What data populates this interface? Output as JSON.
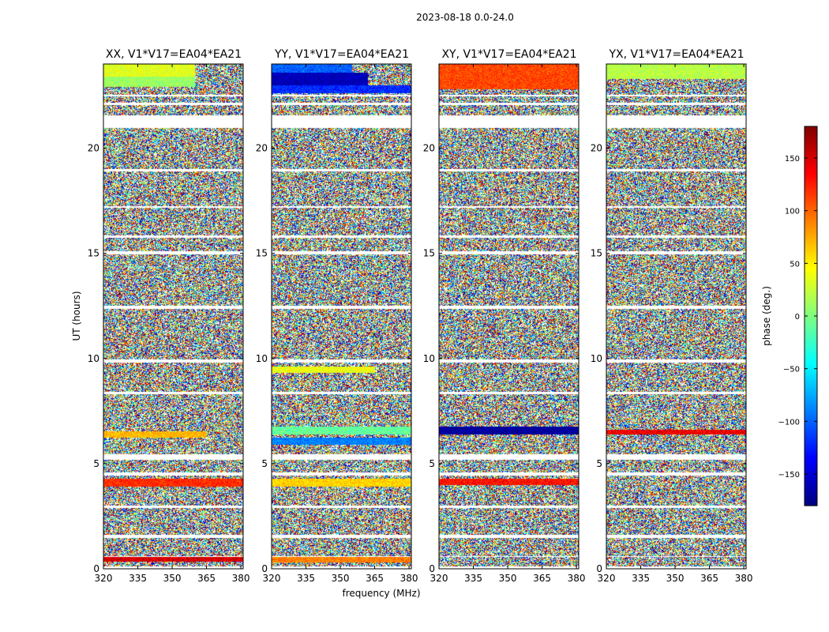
{
  "chart_data": {
    "type": "heatmap",
    "title": "2023-08-18 0.0-24.0",
    "xlabel": "frequency (MHz)",
    "ylabel": "UT (hours)",
    "xlim": [
      320,
      381
    ],
    "ylim": [
      0,
      24
    ],
    "xticks": [
      320,
      335,
      350,
      365,
      380
    ],
    "yticks": [
      0,
      5,
      10,
      15,
      20
    ],
    "panels": [
      {
        "title": "XX, V1*V17=EA04*EA21",
        "pol": "XX"
      },
      {
        "title": "YY, V1*V17=EA04*EA21",
        "pol": "YY"
      },
      {
        "title": "XY, V1*V17=EA04*EA21",
        "pol": "XY"
      },
      {
        "title": "YX, V1*V17=EA04*EA21",
        "pol": "YX"
      }
    ],
    "colorbar": {
      "label": "phase (deg.)",
      "range": [
        -180,
        180
      ],
      "ticks": [
        -150,
        -100,
        -50,
        0,
        50,
        100,
        150
      ],
      "colormap": "jet"
    },
    "flagged_gaps_ut": [
      [
        0.0,
        0.1
      ],
      [
        0.55,
        0.6
      ],
      [
        1.45,
        1.6
      ],
      [
        2.9,
        3.0
      ],
      [
        4.45,
        4.6
      ],
      [
        5.2,
        5.45
      ],
      [
        8.3,
        8.4
      ],
      [
        9.8,
        9.95
      ],
      [
        12.35,
        12.5
      ],
      [
        14.95,
        15.1
      ],
      [
        15.75,
        15.85
      ],
      [
        17.15,
        17.25
      ],
      [
        18.9,
        19.0
      ],
      [
        20.95,
        21.55
      ],
      [
        22.05,
        22.15
      ],
      [
        22.45,
        22.55
      ]
    ],
    "coherent_bands": [
      {
        "pol": "XX",
        "ut": [
          22.9,
          23.4
        ],
        "phase": 10,
        "fmax": 360
      },
      {
        "pol": "XX",
        "ut": [
          23.4,
          24.0
        ],
        "phase": 35,
        "fmax": 360
      },
      {
        "pol": "XX",
        "ut": [
          6.25,
          6.55
        ],
        "phase": 70,
        "fmax": 365
      },
      {
        "pol": "XX",
        "ut": [
          3.9,
          4.3
        ],
        "phase": 120,
        "fmax": 381
      },
      {
        "pol": "XX",
        "ut": [
          0.35,
          0.55
        ],
        "phase": 150,
        "fmax": 381
      },
      {
        "pol": "YY",
        "ut": [
          23.0,
          23.6
        ],
        "phase": -160,
        "fmax": 362
      },
      {
        "pol": "YY",
        "ut": [
          22.6,
          23.0
        ],
        "phase": -120,
        "fmax": 381
      },
      {
        "pol": "YY",
        "ut": [
          23.6,
          24.0
        ],
        "phase": -100,
        "fmax": 355
      },
      {
        "pol": "YY",
        "ut": [
          6.4,
          6.75
        ],
        "phase": -10,
        "fmax": 381
      },
      {
        "pol": "YY",
        "ut": [
          5.9,
          6.25
        ],
        "phase": -90,
        "fmax": 381
      },
      {
        "pol": "YY",
        "ut": [
          9.3,
          9.6
        ],
        "phase": 40,
        "fmax": 365
      },
      {
        "pol": "YY",
        "ut": [
          3.9,
          4.3
        ],
        "phase": 60,
        "fmax": 381
      },
      {
        "pol": "YY",
        "ut": [
          0.3,
          0.55
        ],
        "phase": 90,
        "fmax": 381
      },
      {
        "pol": "XY",
        "ut": [
          22.8,
          24.0
        ],
        "phase": 110,
        "fmax": 381
      },
      {
        "pol": "XY",
        "ut": [
          6.4,
          6.75
        ],
        "phase": -170,
        "fmax": 381
      },
      {
        "pol": "XY",
        "ut": [
          4.0,
          4.3
        ],
        "phase": 130,
        "fmax": 381
      },
      {
        "pol": "YX",
        "ut": [
          23.3,
          24.0
        ],
        "phase": 20,
        "fmax": 381
      },
      {
        "pol": "YX",
        "ut": [
          6.4,
          6.6
        ],
        "phase": 140,
        "fmax": 381
      }
    ]
  }
}
